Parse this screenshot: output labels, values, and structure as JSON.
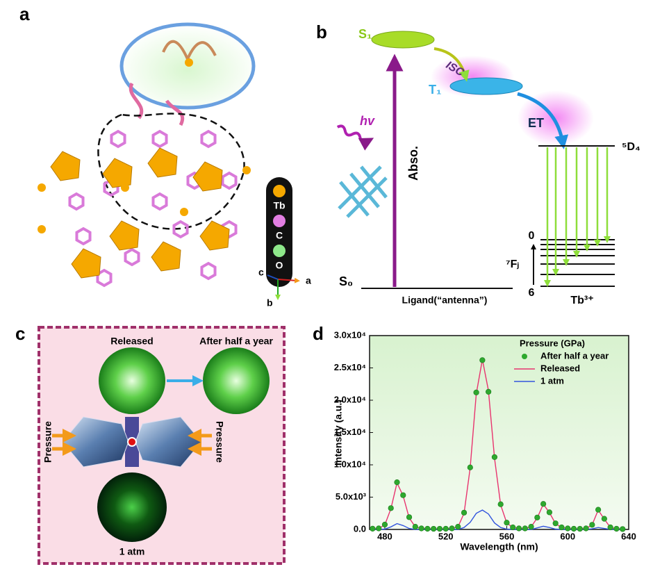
{
  "panels": {
    "a": {
      "label": "a",
      "legend": [
        "Tb",
        "C",
        "O"
      ],
      "axes": [
        "c",
        "a",
        "b"
      ]
    },
    "b": {
      "label": "b",
      "s1": "S₁",
      "t1": "T₁",
      "s0": "S₀",
      "isc": "ISC",
      "et": "ET",
      "hv": "hv",
      "abso": "Abso.",
      "d4": "⁵D₄",
      "fj": "⁷Fⱼ",
      "level_top": "0",
      "level_bottom": "6",
      "ion": "Tb³⁺",
      "ligand": "Ligand(“antenna”)"
    },
    "c": {
      "label": "c",
      "released": "Released",
      "after": "After half a year",
      "pressure_left": "Pressure",
      "pressure_right": "Pressure",
      "atm": "1 atm"
    },
    "d": {
      "label": "d"
    }
  },
  "chart_data": {
    "type": "line",
    "xlabel": "Wavelength (nm)",
    "ylabel": "Intensity (a.u.)",
    "legend_title": "Pressure (GPa)",
    "legend": "upper right",
    "xlim": [
      470,
      640
    ],
    "xticks": [
      480,
      520,
      560,
      600,
      640
    ],
    "ylim": [
      0,
      30000
    ],
    "yticks": [
      {
        "value": 0,
        "label": "0.0"
      },
      {
        "value": 5000,
        "label": "5.0x10³"
      },
      {
        "value": 10000,
        "label": "1.0x10⁴"
      },
      {
        "value": 15000,
        "label": "1.5x10⁴"
      },
      {
        "value": 20000,
        "label": "2.0x10⁴"
      },
      {
        "value": 25000,
        "label": "2.5x10⁴"
      },
      {
        "value": 30000,
        "label": "3.0x10⁴"
      }
    ],
    "x": [
      472,
      476,
      480,
      484,
      488,
      492,
      496,
      500,
      504,
      508,
      512,
      516,
      520,
      524,
      528,
      532,
      536,
      540,
      544,
      548,
      552,
      556,
      560,
      564,
      568,
      572,
      576,
      580,
      584,
      588,
      592,
      596,
      600,
      604,
      608,
      612,
      616,
      620,
      624,
      628,
      632,
      636
    ],
    "series": [
      {
        "name": "After half a year",
        "color": "#2ea82e",
        "mode": "markers",
        "values": [
          120,
          160,
          750,
          3300,
          7300,
          5300,
          1900,
          420,
          160,
          110,
          100,
          100,
          110,
          160,
          420,
          2600,
          9600,
          21200,
          26200,
          21300,
          11200,
          3900,
          1050,
          320,
          160,
          160,
          420,
          1850,
          3950,
          2650,
          950,
          320,
          160,
          110,
          100,
          160,
          720,
          3050,
          1650,
          320,
          110,
          60
        ]
      },
      {
        "name": "Released",
        "color": "#e8336e",
        "mode": "line",
        "values": [
          100,
          150,
          700,
          3200,
          7200,
          5200,
          1800,
          400,
          150,
          100,
          100,
          100,
          100,
          150,
          400,
          2500,
          9500,
          21000,
          26300,
          21500,
          11000,
          3800,
          1000,
          300,
          150,
          150,
          400,
          1800,
          3900,
          2600,
          900,
          300,
          150,
          100,
          100,
          150,
          700,
          3000,
          1600,
          300,
          100,
          50
        ]
      },
      {
        "name": "1 atm",
        "color": "#3355dd",
        "mode": "line",
        "values": [
          0,
          0,
          50,
          400,
          900,
          600,
          150,
          0,
          0,
          0,
          0,
          0,
          0,
          0,
          0,
          300,
          1100,
          2500,
          3000,
          2400,
          1000,
          300,
          50,
          0,
          0,
          0,
          0,
          250,
          500,
          300,
          50,
          0,
          0,
          0,
          0,
          0,
          100,
          300,
          150,
          0,
          0,
          0
        ]
      }
    ]
  }
}
